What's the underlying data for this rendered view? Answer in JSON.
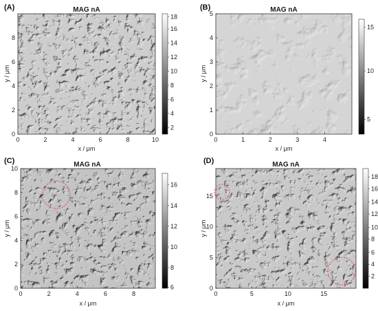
{
  "colors": {
    "frame": "#333333",
    "circle": "#d9535b"
  },
  "panels": [
    {
      "label": "(A)",
      "title": "MAG nA",
      "xlabel": "x / μm",
      "ylabel": "y / μm",
      "xticks": [
        "0",
        "2",
        "4",
        "6",
        "8",
        "10"
      ],
      "yticks": [
        "0",
        "2",
        "4",
        "6",
        "8"
      ],
      "cbar_ticks": [
        "2",
        "4",
        "6",
        "8",
        "10",
        "12",
        "14",
        "16",
        "18"
      ],
      "texture": "fine",
      "tone": "#b0b0b0",
      "circles": []
    },
    {
      "label": "(B)",
      "title": "MAG nA",
      "xlabel": "x / μm",
      "ylabel": "y / μm",
      "xticks": [
        "0",
        "1",
        "2",
        "3",
        "4"
      ],
      "yticks": [
        "0",
        "1",
        "2",
        "3",
        "4",
        "5"
      ],
      "cbar_ticks": [
        "5",
        "10",
        "15"
      ],
      "texture": "coarse",
      "tone": "#bcbcbc",
      "circles": []
    },
    {
      "label": "(C)",
      "title": "MAG nA",
      "xlabel": "x / μm",
      "ylabel": "y / μm",
      "xticks": [
        "0",
        "2",
        "4",
        "6",
        "8"
      ],
      "yticks": [
        "0",
        "2",
        "4",
        "6",
        "8",
        "10"
      ],
      "cbar_ticks": [
        "6",
        "8",
        "10",
        "12",
        "14",
        "16"
      ],
      "texture": "fine",
      "tone": "#9c9c9c",
      "circles": [
        "upper-left"
      ]
    },
    {
      "label": "(D)",
      "title": "MAG nA",
      "xlabel": "x / μm",
      "ylabel": "y / μm",
      "xticks": [
        "0",
        "5",
        "10",
        "15"
      ],
      "yticks": [
        "0",
        "5",
        "10",
        "15"
      ],
      "cbar_ticks": [
        "2",
        "4",
        "6",
        "8",
        "10",
        "12",
        "14",
        "16",
        "18"
      ],
      "texture": "fine",
      "tone": "#a8a8a8",
      "circles": [
        "left-edge",
        "bottom-right"
      ]
    }
  ]
}
